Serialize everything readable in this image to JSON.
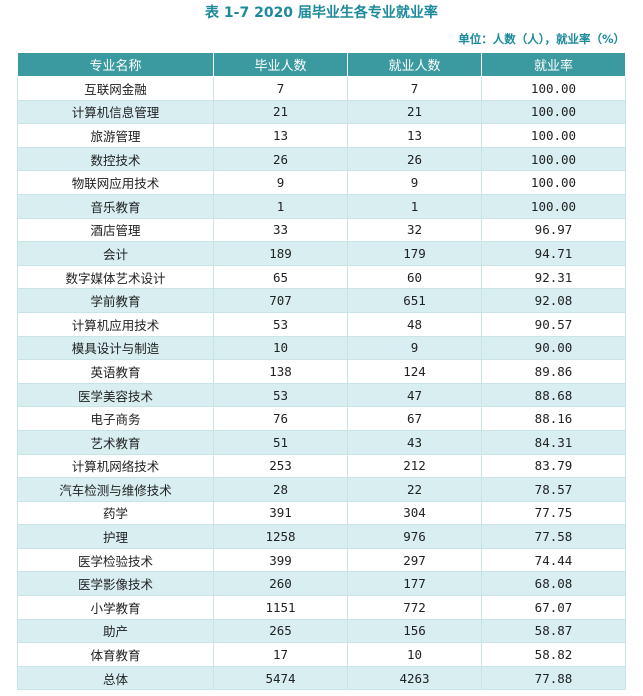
{
  "title": "表 1-7  2020 届毕业生各专业就业率",
  "unit_note": "单位：人数（人），就业率（%）",
  "columns": [
    "专业名称",
    "毕业人数",
    "就业人数",
    "就业率"
  ],
  "rows": [
    {
      "major": "互联网金融",
      "graduates": "7",
      "employed": "7",
      "rate": "100.00"
    },
    {
      "major": "计算机信息管理",
      "graduates": "21",
      "employed": "21",
      "rate": "100.00"
    },
    {
      "major": "旅游管理",
      "graduates": "13",
      "employed": "13",
      "rate": "100.00"
    },
    {
      "major": "数控技术",
      "graduates": "26",
      "employed": "26",
      "rate": "100.00"
    },
    {
      "major": "物联网应用技术",
      "graduates": "9",
      "employed": "9",
      "rate": "100.00"
    },
    {
      "major": "音乐教育",
      "graduates": "1",
      "employed": "1",
      "rate": "100.00"
    },
    {
      "major": "酒店管理",
      "graduates": "33",
      "employed": "32",
      "rate": "96.97"
    },
    {
      "major": "会计",
      "graduates": "189",
      "employed": "179",
      "rate": "94.71"
    },
    {
      "major": "数字媒体艺术设计",
      "graduates": "65",
      "employed": "60",
      "rate": "92.31"
    },
    {
      "major": "学前教育",
      "graduates": "707",
      "employed": "651",
      "rate": "92.08"
    },
    {
      "major": "计算机应用技术",
      "graduates": "53",
      "employed": "48",
      "rate": "90.57"
    },
    {
      "major": "模具设计与制造",
      "graduates": "10",
      "employed": "9",
      "rate": "90.00"
    },
    {
      "major": "英语教育",
      "graduates": "138",
      "employed": "124",
      "rate": "89.86"
    },
    {
      "major": "医学美容技术",
      "graduates": "53",
      "employed": "47",
      "rate": "88.68"
    },
    {
      "major": "电子商务",
      "graduates": "76",
      "employed": "67",
      "rate": "88.16"
    },
    {
      "major": "艺术教育",
      "graduates": "51",
      "employed": "43",
      "rate": "84.31"
    },
    {
      "major": "计算机网络技术",
      "graduates": "253",
      "employed": "212",
      "rate": "83.79"
    },
    {
      "major": "汽车检测与维修技术",
      "graduates": "28",
      "employed": "22",
      "rate": "78.57"
    },
    {
      "major": "药学",
      "graduates": "391",
      "employed": "304",
      "rate": "77.75"
    },
    {
      "major": "护理",
      "graduates": "1258",
      "employed": "976",
      "rate": "77.58"
    },
    {
      "major": "医学检验技术",
      "graduates": "399",
      "employed": "297",
      "rate": "74.44"
    },
    {
      "major": "医学影像技术",
      "graduates": "260",
      "employed": "177",
      "rate": "68.08"
    },
    {
      "major": "小学教育",
      "graduates": "1151",
      "employed": "772",
      "rate": "67.07"
    },
    {
      "major": "助产",
      "graduates": "265",
      "employed": "156",
      "rate": "58.87"
    },
    {
      "major": "体育教育",
      "graduates": "17",
      "employed": "10",
      "rate": "58.82"
    },
    {
      "major": "总体",
      "graduates": "5474",
      "employed": "4263",
      "rate": "77.88"
    }
  ]
}
